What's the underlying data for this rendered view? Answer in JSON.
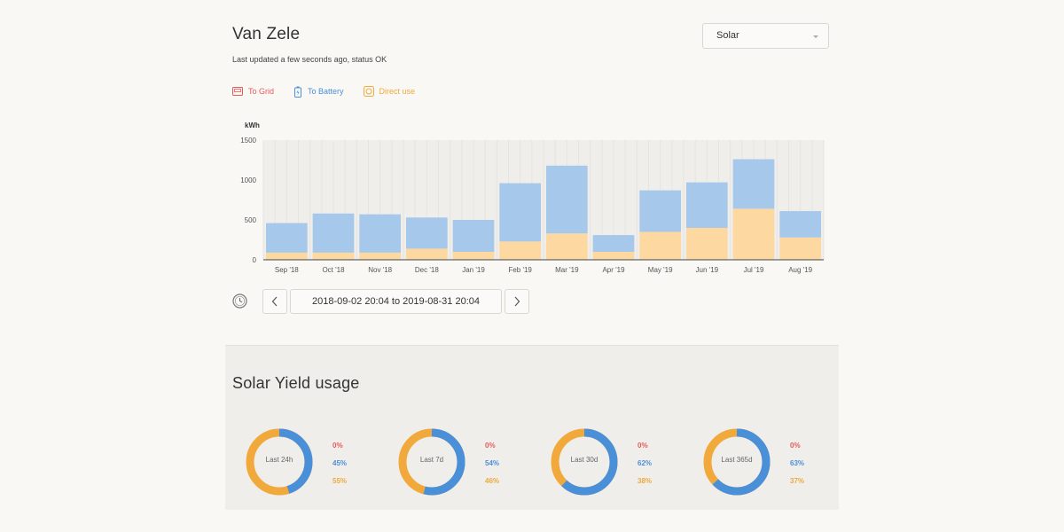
{
  "header": {
    "title": "Van Zele",
    "status": "Last updated a few seconds ago, status OK",
    "source_select": "Solar"
  },
  "legend": [
    {
      "label": "To Grid",
      "color": "#e85a5a",
      "icon": "grid-meter-icon"
    },
    {
      "label": "To Battery",
      "color": "#4a90d9",
      "icon": "battery-icon"
    },
    {
      "label": "Direct use",
      "color": "#f0a93a",
      "icon": "direct-use-icon"
    }
  ],
  "chart_data": {
    "type": "bar",
    "stacked": true,
    "ylabel": "kWh",
    "ylim": [
      0,
      1500
    ],
    "yticks": [
      0,
      500,
      1000,
      1500
    ],
    "categories": [
      "Sep '18",
      "Oct '18",
      "Nov '18",
      "Dec '18",
      "Jan '19",
      "Feb '19",
      "Mar '19",
      "Apr '19",
      "May '19",
      "Jun '19",
      "Jul '19",
      "Aug '19"
    ],
    "series": [
      {
        "name": "Direct use",
        "color": "#fdd8a0",
        "values": [
          90,
          90,
          90,
          140,
          100,
          230,
          330,
          100,
          350,
          400,
          640,
          280
        ]
      },
      {
        "name": "To Battery",
        "color": "#a6c8ea",
        "values": [
          370,
          490,
          480,
          390,
          400,
          730,
          850,
          210,
          520,
          570,
          620,
          330
        ]
      },
      {
        "name": "To Grid",
        "color": "#e85a5a",
        "values": [
          0,
          0,
          0,
          0,
          0,
          0,
          0,
          0,
          0,
          0,
          0,
          0
        ]
      }
    ],
    "grid": true
  },
  "period": {
    "range": "2018-09-02 20:04 to 2019-08-31 20:04"
  },
  "yield": {
    "title": "Solar Yield usage",
    "colors": {
      "grid": "#e85a5a",
      "battery": "#4a90d9",
      "direct": "#f0a93a"
    },
    "donuts": [
      {
        "label": "Last 24h",
        "grid": "0%",
        "battery": "45%",
        "direct": "55%",
        "battery_fraction": 0.45
      },
      {
        "label": "Last 7d",
        "grid": "0%",
        "battery": "54%",
        "direct": "46%",
        "battery_fraction": 0.54
      },
      {
        "label": "Last 30d",
        "grid": "0%",
        "battery": "62%",
        "direct": "38%",
        "battery_fraction": 0.62
      },
      {
        "label": "Last 365d",
        "grid": "0%",
        "battery": "63%",
        "direct": "37%",
        "battery_fraction": 0.63
      }
    ]
  }
}
